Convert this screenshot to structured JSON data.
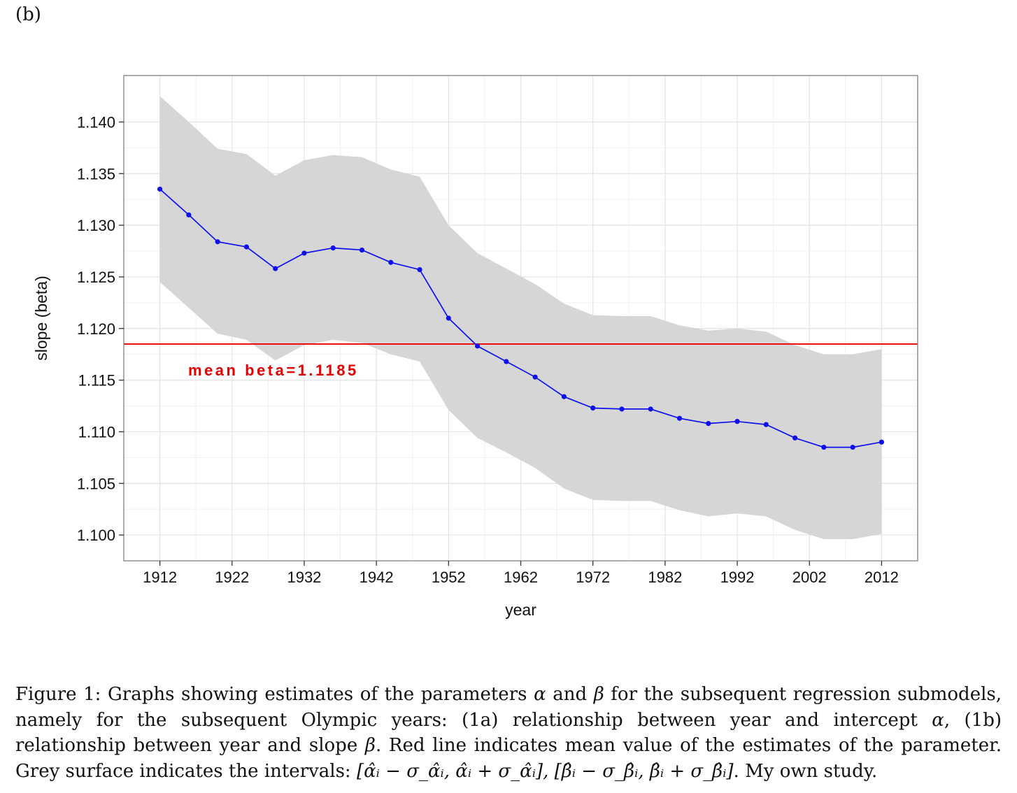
{
  "panel_label": "(b)",
  "chart_data": {
    "type": "line",
    "xlabel": "year",
    "ylabel": "slope (beta)",
    "xlim": [
      1907,
      2017
    ],
    "ylim": [
      1.0975,
      1.1445
    ],
    "x_ticks": [
      1912,
      1922,
      1932,
      1942,
      1952,
      1962,
      1972,
      1982,
      1992,
      2002,
      2012
    ],
    "x_tick_labels": [
      "1912",
      "1922",
      "1932",
      "1942",
      "1952",
      "1962",
      "1972",
      "1982",
      "1992",
      "2002",
      "2012"
    ],
    "y_ticks": [
      1.1,
      1.105,
      1.11,
      1.115,
      1.12,
      1.125,
      1.13,
      1.135,
      1.14
    ],
    "y_tick_labels": [
      "1.100",
      "1.105",
      "1.110",
      "1.115",
      "1.120",
      "1.125",
      "1.130",
      "1.135",
      "1.140"
    ],
    "grid": true,
    "x": [
      1912,
      1916,
      1920,
      1924,
      1928,
      1932,
      1936,
      1940,
      1944,
      1948,
      1952,
      1956,
      1960,
      1964,
      1968,
      1972,
      1976,
      1980,
      1984,
      1988,
      1992,
      1996,
      2000,
      2004,
      2008,
      2012
    ],
    "series": [
      {
        "name": "beta estimate",
        "color": "#1010ee",
        "values": [
          1.1335,
          1.131,
          1.1284,
          1.1279,
          1.1258,
          1.1273,
          1.1278,
          1.1276,
          1.1264,
          1.1257,
          1.121,
          1.1183,
          1.1168,
          1.1153,
          1.1134,
          1.1123,
          1.1122,
          1.1122,
          1.1113,
          1.1108,
          1.111,
          1.1107,
          1.1094,
          1.1085,
          1.1085,
          1.109
        ]
      }
    ],
    "band": {
      "name": "beta +/- sigma",
      "color": "#d6d6d6",
      "upper": [
        1.1425,
        1.14,
        1.1374,
        1.1369,
        1.1348,
        1.1363,
        1.1368,
        1.1366,
        1.1354,
        1.1347,
        1.13,
        1.1273,
        1.1258,
        1.1243,
        1.1224,
        1.1213,
        1.1212,
        1.1212,
        1.1203,
        1.1198,
        1.12,
        1.1197,
        1.1184,
        1.1175,
        1.1175,
        1.118
      ],
      "lower": [
        1.1245,
        1.122,
        1.1195,
        1.1189,
        1.1169,
        1.1184,
        1.1189,
        1.1186,
        1.1175,
        1.1168,
        1.1121,
        1.1094,
        1.108,
        1.1065,
        1.1045,
        1.1034,
        1.1033,
        1.1033,
        1.1024,
        1.1018,
        1.1021,
        1.1018,
        1.1005,
        1.0996,
        1.0996,
        1.1001
      ]
    },
    "hline": {
      "value": 1.1185,
      "color": "#ee0000",
      "label": "mean beta=1.1185"
    }
  },
  "caption": {
    "part1": "Figure 1: Graphs showing estimates of the parameters ",
    "alpha": "α",
    "part2": " and ",
    "beta": "β",
    "part3": " for the subsequent regression submodels, namely for the subsequent Olympic years: (1a) relationship between year and intercept ",
    "part4": ", (1b) relationship between year and slope ",
    "part5": ". Red line indicates mean value of the estimates of the parameter. Grey surface indicates the intervals: ",
    "intervals": "[α̂ᵢ − σ_α̂ᵢ, α̂ᵢ + σ_α̂ᵢ], [β̂ᵢ − σ_β̂ᵢ, β̂ᵢ + σ_β̂ᵢ]",
    "part6": ". My own study."
  }
}
